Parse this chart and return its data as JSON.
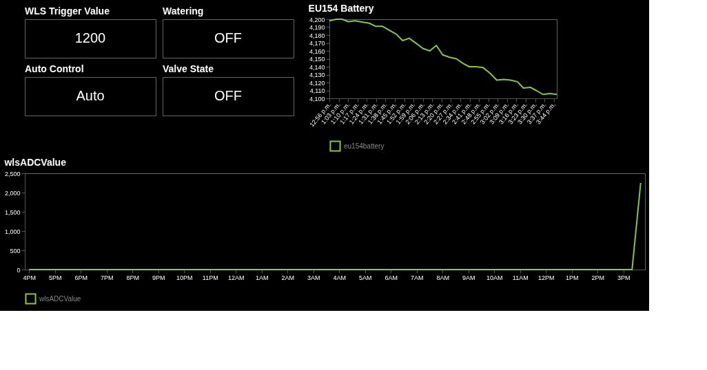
{
  "chart_data": [
    {
      "type": "other",
      "title": "WLS Trigger Value",
      "annotations": [
        "1200"
      ]
    },
    {
      "type": "other",
      "title": "Watering",
      "annotations": [
        "OFF"
      ]
    },
    {
      "type": "line",
      "title": "EU154 Battery",
      "legend": "bottom",
      "grid": false,
      "marker": "none",
      "line_style": "solid",
      "x": [
        12.933,
        13.019,
        13.093,
        13.169,
        13.253,
        13.363,
        13.432,
        13.511,
        13.597,
        13.683,
        13.769,
        13.847,
        13.928,
        13.997,
        14.1,
        14.186,
        14.267,
        14.346,
        14.432,
        14.518,
        14.603,
        14.677,
        14.763,
        14.849,
        14.935,
        15.021,
        15.107,
        15.193,
        15.279,
        15.353,
        15.439,
        15.512,
        15.598,
        15.685,
        15.77
      ],
      "series": [
        {
          "name": "eu154battery",
          "color": "#8cc63f",
          "values": [
            4198,
            4200,
            4200,
            4197,
            4198,
            4196,
            4195,
            4191,
            4191,
            4186,
            4181,
            4173,
            4176,
            4171,
            4163,
            4160,
            4167,
            4155,
            4152,
            4150,
            4144,
            4140,
            4140,
            4139,
            4132,
            4123,
            4124,
            4123,
            4121,
            4113,
            4114,
            4110,
            4105,
            4106,
            4105
          ]
        }
      ],
      "xlim": [
        12.933,
        15.77
      ],
      "ylim": [
        4100,
        4200
      ],
      "yticks": [
        {
          "value": 4100,
          "label": "4,100"
        },
        {
          "value": 4110,
          "label": "4,110"
        },
        {
          "value": 4120,
          "label": "4,120"
        },
        {
          "value": 4130,
          "label": "4,130"
        },
        {
          "value": 4140,
          "label": "4,140"
        },
        {
          "value": 4150,
          "label": "4,150"
        },
        {
          "value": 4160,
          "label": "4,160"
        },
        {
          "value": 4170,
          "label": "4,170"
        },
        {
          "value": 4180,
          "label": "4,180"
        },
        {
          "value": 4190,
          "label": "4,190"
        },
        {
          "value": 4200,
          "label": "4,200"
        }
      ],
      "xticks": [
        {
          "value": 12.933,
          "label": "12:56 p.m."
        },
        {
          "value": 13.05,
          "label": "1:03 p.m."
        },
        {
          "value": 13.167,
          "label": "1:10 p.m."
        },
        {
          "value": 13.283,
          "label": "1:17 p.m."
        },
        {
          "value": 13.4,
          "label": "1:24 p.m."
        },
        {
          "value": 13.517,
          "label": "1:31 p.m."
        },
        {
          "value": 13.633,
          "label": "1:38 p.m."
        },
        {
          "value": 13.75,
          "label": "1:45 p.m."
        },
        {
          "value": 13.867,
          "label": "1:52 p.m."
        },
        {
          "value": 13.983,
          "label": "1:59 p.m."
        },
        {
          "value": 14.1,
          "label": "2:06 p.m."
        },
        {
          "value": 14.217,
          "label": "2:13 p.m."
        },
        {
          "value": 14.333,
          "label": "2:20 p.m."
        },
        {
          "value": 14.45,
          "label": "2:27 p.m."
        },
        {
          "value": 14.567,
          "label": "2:34 p.m."
        },
        {
          "value": 14.683,
          "label": "2:41 p.m."
        },
        {
          "value": 14.8,
          "label": "2:48 p.m."
        },
        {
          "value": 14.917,
          "label": "2:55 p.m."
        },
        {
          "value": 15.033,
          "label": "3:02 p.m."
        },
        {
          "value": 15.15,
          "label": "3:09 p.m."
        },
        {
          "value": 15.267,
          "label": "3:16 p.m."
        },
        {
          "value": 15.383,
          "label": "3:23 p.m."
        },
        {
          "value": 15.5,
          "label": "3:30 p.m."
        },
        {
          "value": 15.617,
          "label": "3:37 p.m."
        },
        {
          "value": 15.733,
          "label": "3:44 p.m."
        }
      ]
    },
    {
      "type": "other",
      "title": "Auto Control",
      "annotations": [
        "Auto"
      ]
    },
    {
      "type": "other",
      "title": "Valve State",
      "annotations": [
        "OFF"
      ]
    },
    {
      "type": "line",
      "title": "wlsADCValue",
      "legend": "bottom",
      "grid": false,
      "marker": "none",
      "line_style": "solid",
      "categories": [
        "4PM",
        null,
        null,
        "5PM",
        null,
        null,
        "6PM",
        null,
        null,
        "7PM",
        null,
        null,
        "8PM",
        null,
        null,
        "9PM",
        null,
        null,
        "10PM",
        null,
        null,
        "11PM",
        null,
        null,
        "12AM",
        null,
        null,
        "1AM",
        null,
        null,
        "2AM",
        null,
        null,
        "3AM",
        null,
        null,
        "4AM",
        null,
        null,
        "5AM",
        null,
        null,
        "6AM",
        null,
        null,
        "7AM",
        null,
        null,
        "8AM",
        null,
        null,
        "9AM",
        null,
        null,
        "10AM",
        null,
        null,
        "11AM",
        null,
        null,
        "12PM",
        null,
        null,
        "1PM",
        null,
        null,
        "2PM",
        null,
        null,
        "3PM",
        null,
        null
      ],
      "series": [
        {
          "name": "wlsADCValue",
          "color": "#8cc63f",
          "values": [
            0,
            0,
            0,
            0,
            0,
            0,
            0,
            0,
            0,
            0,
            0,
            0,
            0,
            0,
            0,
            0,
            0,
            0,
            0,
            0,
            0,
            0,
            0,
            0,
            0,
            0,
            0,
            0,
            0,
            0,
            0,
            0,
            0,
            0,
            0,
            0,
            0,
            0,
            0,
            0,
            0,
            0,
            0,
            0,
            0,
            0,
            0,
            0,
            0,
            0,
            0,
            0,
            0,
            0,
            0,
            0,
            0,
            0,
            0,
            0,
            0,
            0,
            0,
            0,
            0,
            0,
            0,
            0,
            0,
            0,
            0,
            2250
          ]
        }
      ],
      "ylim": [
        0,
        2500
      ],
      "yticks": [
        0,
        {
          "value": 500,
          "label": "500"
        },
        {
          "value": 1000,
          "label": "1,000"
        },
        {
          "value": 1500,
          "label": "1,500"
        },
        {
          "value": 2000,
          "label": "2,000"
        },
        {
          "value": 2500,
          "label": "2,500"
        }
      ]
    }
  ]
}
